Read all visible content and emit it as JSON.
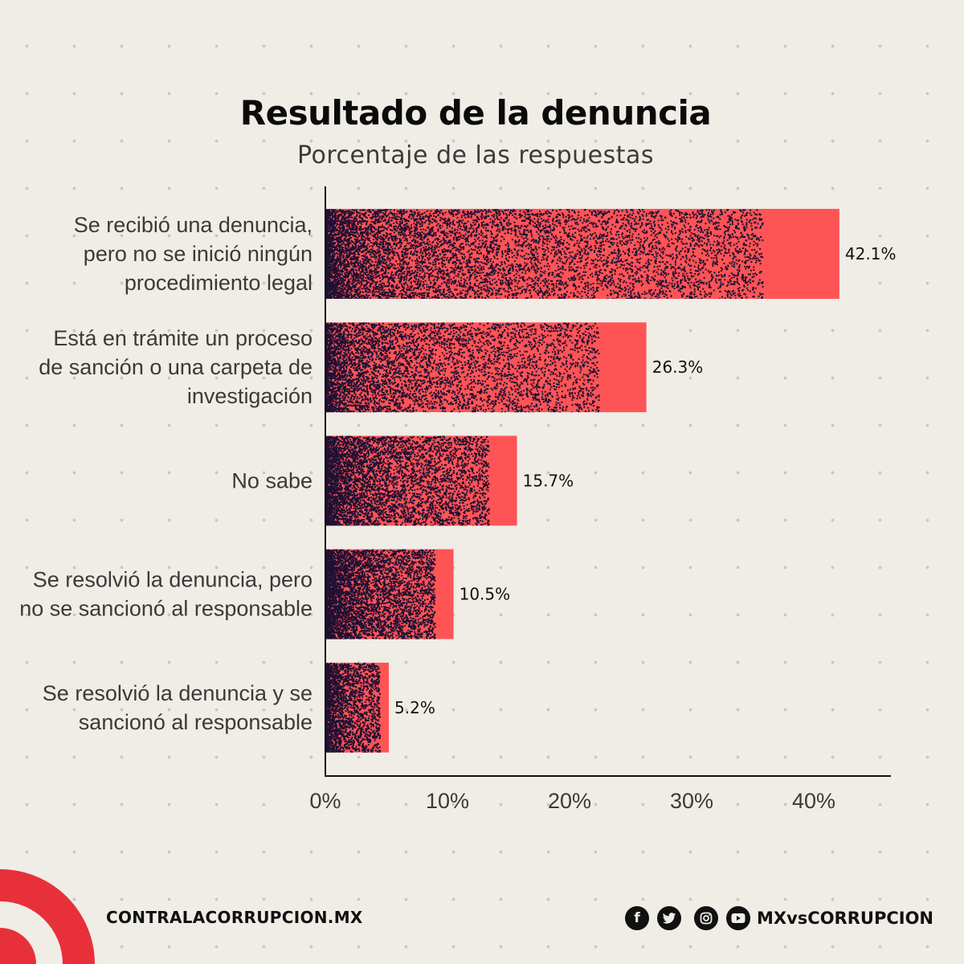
{
  "colors": {
    "background": "#efede6",
    "bar": "#ff5455",
    "bar_dark": "#1e1033",
    "brand_red": "#e8303a",
    "text": "#111111"
  },
  "chart_data": {
    "type": "bar",
    "orientation": "horizontal",
    "title": "Resultado de la denuncia",
    "subtitle": "Porcentaje de las respuestas",
    "xlabel": "",
    "ylabel": "",
    "categories": [
      [
        "Se recibió una denuncia,",
        "pero no se inició ningún",
        "procedimiento legal"
      ],
      [
        "Está en trámite un proceso",
        "de sanción o una carpeta de",
        "investigación"
      ],
      [
        "No sabe"
      ],
      [
        "Se resolvió la denuncia, pero",
        "no se sancionó al responsable"
      ],
      [
        "Se resolvió la denuncia y se",
        "sancionó al responsable"
      ]
    ],
    "values": [
      42.1,
      26.3,
      15.7,
      10.5,
      5.2
    ],
    "value_labels": [
      "42.1%",
      "26.3%",
      "15.7%",
      "10.5%",
      "5.2%"
    ],
    "xlim": [
      0,
      45
    ],
    "ticks": [
      0,
      10,
      20,
      30,
      40
    ],
    "tick_labels": [
      "0%",
      "10%",
      "20%",
      "30%",
      "40%"
    ],
    "grid": false,
    "legend": "none"
  },
  "footer": {
    "website": "CONTRALACORRUPCION.MX",
    "social_icons": [
      "facebook-icon",
      "twitter-icon",
      "instagram-icon",
      "youtube-icon"
    ],
    "handle": "MXvsCORRUPCION"
  }
}
